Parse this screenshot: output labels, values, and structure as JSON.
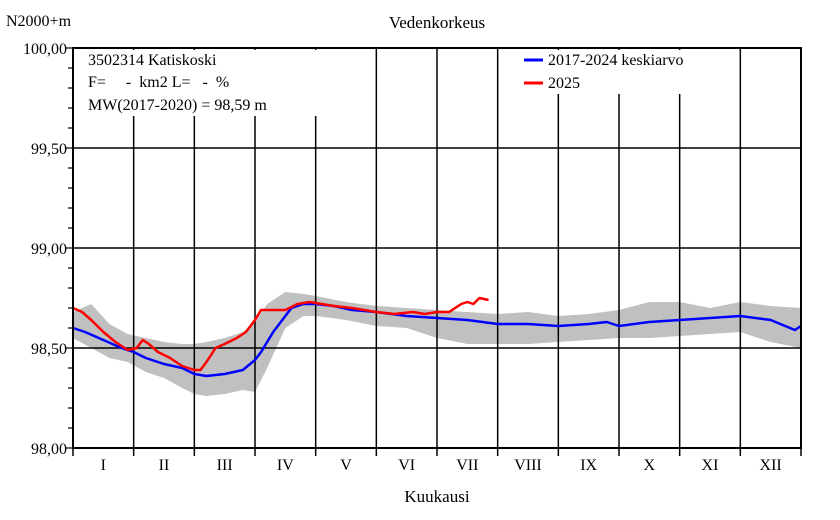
{
  "chart_data": {
    "type": "line",
    "title": "Vedenkorkeus",
    "ylabel": "N2000+m",
    "xlabel": "Kuukausi",
    "ylim": [
      98.0,
      100.0
    ],
    "xlim": [
      0,
      12
    ],
    "y_ticks": [
      "100,00",
      "99,50",
      "99,00",
      "98,50",
      "98,00"
    ],
    "y_tick_values": [
      100.0,
      99.5,
      99.0,
      98.5,
      98.0
    ],
    "months": [
      "I",
      "II",
      "III",
      "IV",
      "V",
      "VI",
      "VII",
      "VIII",
      "IX",
      "X",
      "XI",
      "XII"
    ],
    "grid": true,
    "legend_position": "top-right",
    "info_lines": [
      "3502314 Katiskoski",
      "F=     -  km2 L=   -  %",
      "MW(2017-2020) = 98,59 m"
    ],
    "legend": [
      {
        "label": "2017-2024 keskiarvo",
        "color": "#0000ff"
      },
      {
        "label": "2025",
        "color": "#ff0000"
      }
    ],
    "band": {
      "color": "#c0c0c0",
      "x": [
        0,
        0.3,
        0.6,
        0.9,
        1.2,
        1.5,
        1.8,
        2.0,
        2.2,
        2.5,
        2.8,
        3.0,
        3.2,
        3.5,
        3.8,
        4.0,
        4.5,
        5.0,
        5.5,
        6.0,
        6.5,
        7.0,
        7.5,
        8.0,
        8.5,
        9.0,
        9.5,
        10.0,
        10.5,
        11.0,
        11.5,
        12.0
      ],
      "upper": [
        98.68,
        98.72,
        98.62,
        98.57,
        98.55,
        98.53,
        98.52,
        98.52,
        98.53,
        98.55,
        98.58,
        98.63,
        98.72,
        98.78,
        98.77,
        98.76,
        98.73,
        98.71,
        98.7,
        98.69,
        98.68,
        98.67,
        98.68,
        98.66,
        98.67,
        98.69,
        98.73,
        98.73,
        98.7,
        98.73,
        98.71,
        98.7
      ],
      "lower": [
        98.55,
        98.5,
        98.45,
        98.43,
        98.38,
        98.35,
        98.3,
        98.27,
        98.26,
        98.27,
        98.29,
        98.28,
        98.4,
        98.6,
        98.66,
        98.66,
        98.64,
        98.61,
        98.6,
        98.55,
        98.52,
        98.52,
        98.52,
        98.53,
        98.54,
        98.55,
        98.55,
        98.56,
        98.57,
        98.58,
        98.53,
        98.5
      ]
    },
    "series": [
      {
        "name": "2017-2024 keskiarvo",
        "color": "#0000ff",
        "x": [
          0,
          0.2,
          0.5,
          0.8,
          1.0,
          1.2,
          1.5,
          1.8,
          2.0,
          2.2,
          2.5,
          2.8,
          3.0,
          3.1,
          3.3,
          3.5,
          3.6,
          3.8,
          4.0,
          4.3,
          4.6,
          5.0,
          5.5,
          6.0,
          6.5,
          7.0,
          7.5,
          8.0,
          8.5,
          8.8,
          9.0,
          9.5,
          10.0,
          10.5,
          11.0,
          11.5,
          11.9,
          12.0
        ],
        "y": [
          98.6,
          98.58,
          98.54,
          98.5,
          98.48,
          98.45,
          98.42,
          98.4,
          98.37,
          98.36,
          98.37,
          98.39,
          98.44,
          98.48,
          98.58,
          98.66,
          98.7,
          98.72,
          98.72,
          98.71,
          98.69,
          98.68,
          98.66,
          98.65,
          98.64,
          98.62,
          98.62,
          98.61,
          98.62,
          98.63,
          98.61,
          98.63,
          98.64,
          98.65,
          98.66,
          98.64,
          98.59,
          98.61
        ]
      },
      {
        "name": "2025",
        "color": "#ff0000",
        "x": [
          0,
          0.15,
          0.3,
          0.5,
          0.7,
          0.9,
          1.05,
          1.15,
          1.25,
          1.4,
          1.6,
          1.8,
          2.0,
          2.1,
          2.2,
          2.35,
          2.5,
          2.7,
          2.85,
          3.0,
          3.1,
          3.3,
          3.5,
          3.7,
          3.9,
          4.1,
          4.3,
          4.6,
          5.0,
          5.3,
          5.6,
          5.8,
          6.0,
          6.2,
          6.3,
          6.4,
          6.5,
          6.6,
          6.7,
          6.85
        ],
        "y": [
          98.7,
          98.68,
          98.64,
          98.58,
          98.53,
          98.49,
          98.5,
          98.54,
          98.52,
          98.48,
          98.45,
          98.41,
          98.39,
          98.39,
          98.43,
          98.5,
          98.52,
          98.55,
          98.58,
          98.64,
          98.69,
          98.69,
          98.69,
          98.72,
          98.73,
          98.72,
          98.71,
          98.7,
          98.68,
          98.67,
          98.68,
          98.67,
          98.68,
          98.68,
          98.7,
          98.72,
          98.73,
          98.72,
          98.75,
          98.74
        ]
      }
    ]
  }
}
